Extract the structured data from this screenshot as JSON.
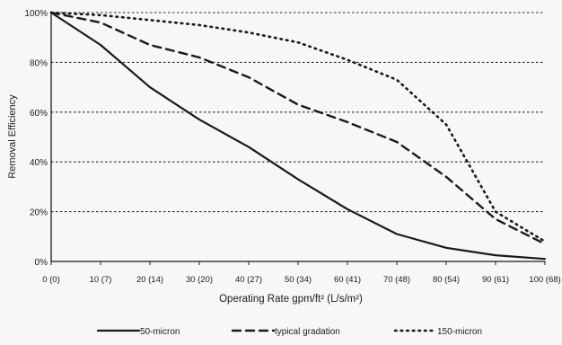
{
  "chart_data": {
    "type": "line",
    "title": "",
    "xlabel": "Operating Rate gpm/ft² (L/s/m²)",
    "ylabel": "Removal Efficiency",
    "x": [
      0,
      10,
      20,
      30,
      40,
      50,
      60,
      70,
      80,
      90,
      100
    ],
    "x_tick_labels": [
      "0 (0)",
      "10 (7)",
      "20 (14)",
      "30 (20)",
      "40 (27)",
      "50 (34)",
      "60 (41)",
      "70 (48)",
      "80 (54)",
      "90 (61)",
      "100 (68)"
    ],
    "xlim": [
      0,
      100
    ],
    "ylim": [
      0,
      100
    ],
    "y_ticks": [
      0,
      20,
      40,
      60,
      80,
      100
    ],
    "y_tick_labels": [
      "0%",
      "20%",
      "40%",
      "60%",
      "80%",
      "100%"
    ],
    "grid": "horizontal dotted lines",
    "legend_position": "bottom",
    "series": [
      {
        "name": "50-micron",
        "style": "solid",
        "color": "#1a1a1a",
        "values": [
          100,
          87,
          70,
          57,
          46,
          33,
          21,
          11,
          5.5,
          2.5,
          1
        ]
      },
      {
        "name": "typical gradation",
        "style": "dashed",
        "color": "#1a1a1a",
        "values": [
          100,
          96,
          87,
          82,
          74,
          63,
          56,
          48,
          34,
          17,
          7
        ]
      },
      {
        "name": "150-micron",
        "style": "dotted",
        "color": "#1a1a1a",
        "values": [
          100,
          99,
          97,
          95,
          92,
          88,
          81,
          73,
          55,
          20,
          8
        ]
      }
    ]
  }
}
